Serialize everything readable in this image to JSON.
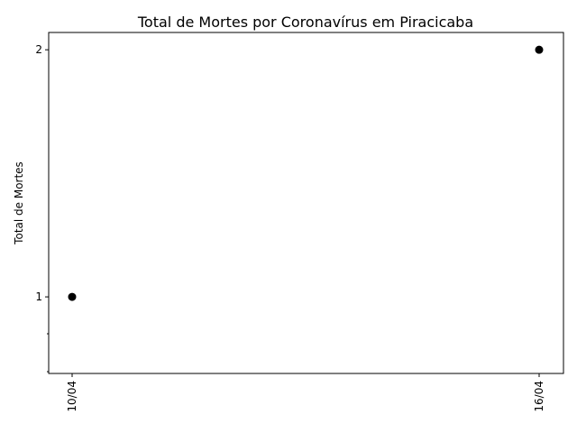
{
  "chart_data": {
    "type": "scatter",
    "title": "Total de Mortes por Coronavírus em Piracicaba",
    "xlabel": "",
    "ylabel": "Total de Mortes",
    "x": [
      "10/04",
      "16/04"
    ],
    "y": [
      1,
      2
    ],
    "x_tick_labels": [
      "10/04",
      "16/04"
    ],
    "y_ticks": [
      1,
      2
    ],
    "y_tick_labels": [
      "1",
      "2"
    ],
    "ylim": [
      0.69,
      2.07
    ],
    "marker_color": "#000000",
    "grid": false,
    "legend": false
  }
}
